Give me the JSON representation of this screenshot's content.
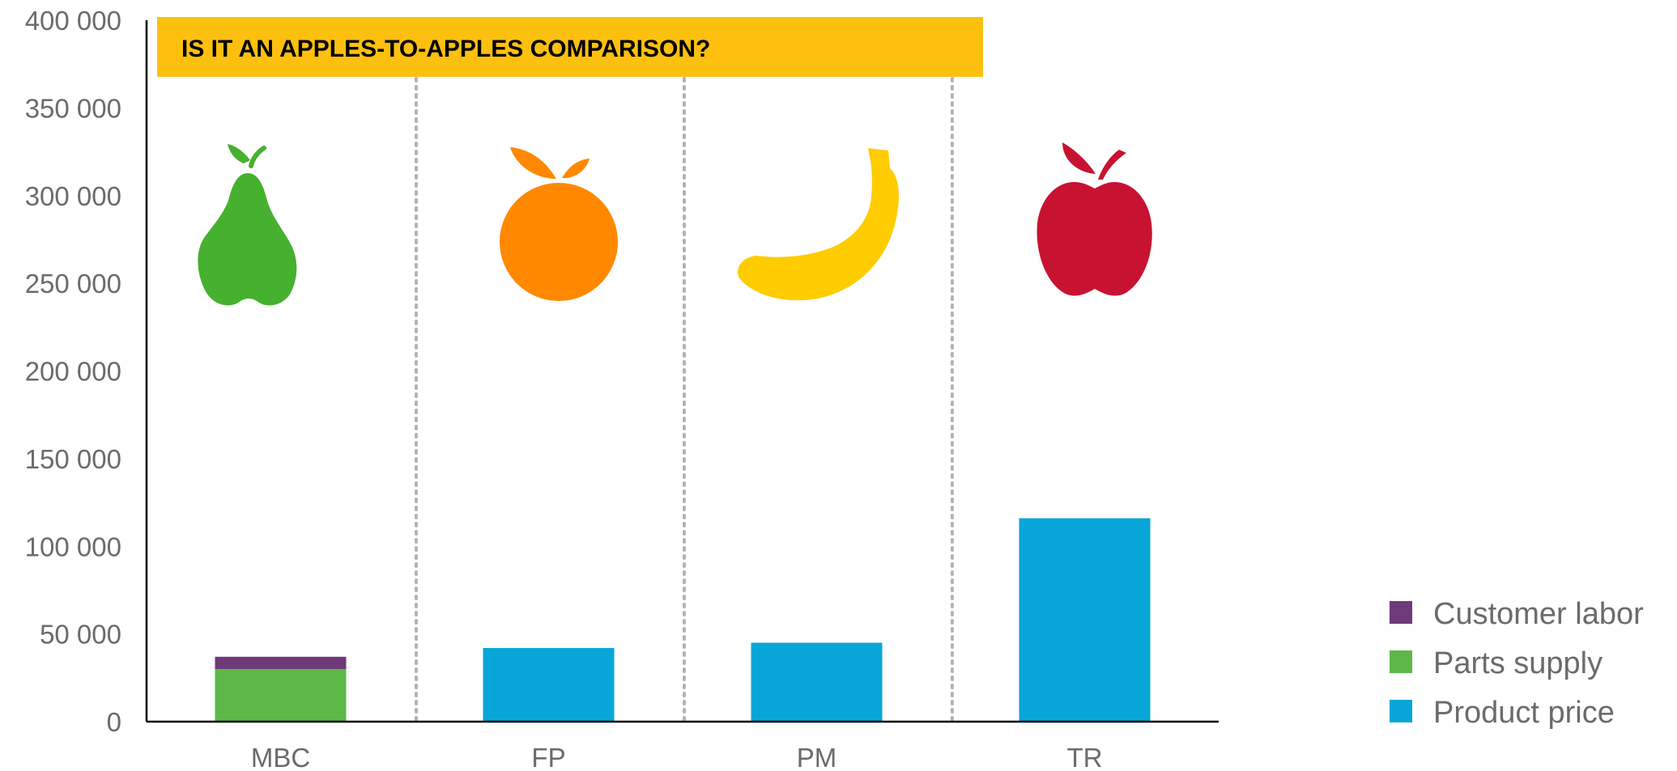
{
  "chart_data": {
    "type": "bar",
    "stacked": true,
    "title": "",
    "xlabel": "",
    "ylabel": "",
    "ylim": [
      0,
      400000
    ],
    "y_ticks": [
      0,
      50000,
      100000,
      150000,
      200000,
      250000,
      300000,
      350000,
      400000
    ],
    "y_tick_labels": [
      "0",
      "50 000",
      "100 000",
      "150 000",
      "200 000",
      "250 000",
      "300 000",
      "350 000",
      "400 000"
    ],
    "categories": [
      "MBC",
      "FP",
      "PM",
      "TR"
    ],
    "series": [
      {
        "name": "Product price",
        "color": "#08A6D8",
        "values": [
          0,
          42000,
          45000,
          116000
        ]
      },
      {
        "name": "Parts supply",
        "color": "#5DB848",
        "values": [
          30000,
          0,
          0,
          0
        ]
      },
      {
        "name": "Customer labor",
        "color": "#6E3A78",
        "values": [
          7000,
          0,
          0,
          0
        ]
      }
    ],
    "legend_order": [
      "Customer labor",
      "Parts supply",
      "Product price"
    ],
    "legend_position": "bottom-right",
    "grid": false,
    "annotations": {
      "banner": "IS IT AN APPLES-TO-APPLES COMPARISON?",
      "banner_color": "#FDC00F",
      "icons": [
        {
          "name": "pear-icon",
          "color": "#46B02F"
        },
        {
          "name": "orange-icon",
          "color": "#FF8800"
        },
        {
          "name": "banana-icon",
          "color": "#FFCC00"
        },
        {
          "name": "apple-icon",
          "color": "#C81232"
        }
      ]
    }
  }
}
